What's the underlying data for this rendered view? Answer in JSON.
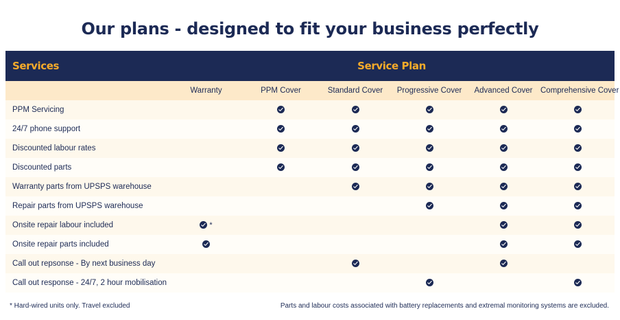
{
  "title": "Our plans - designed to fit your business perfectly",
  "header": {
    "services_label": "Services",
    "plan_label": "Service Plan"
  },
  "columns": [
    "Warranty",
    "PPM Cover",
    "Standard Cover",
    "Progressive Cover",
    "Advanced Cover",
    "Comprehensive Cover"
  ],
  "rows": [
    {
      "service": "PPM Servicing",
      "cells": [
        "",
        "check",
        "check",
        "check",
        "check",
        "check"
      ]
    },
    {
      "service": "24/7 phone support",
      "cells": [
        "",
        "check",
        "check",
        "check",
        "check",
        "check"
      ]
    },
    {
      "service": "Discounted labour rates",
      "cells": [
        "",
        "check",
        "check",
        "check",
        "check",
        "check"
      ]
    },
    {
      "service": "Discounted parts",
      "cells": [
        "",
        "check",
        "check",
        "check",
        "check",
        "check"
      ]
    },
    {
      "service": "Warranty parts from UPSPS warehouse",
      "cells": [
        "",
        "",
        "check",
        "check",
        "check",
        "check"
      ]
    },
    {
      "service": "Repair parts from UPSPS warehouse",
      "cells": [
        "",
        "",
        "",
        "check",
        "check",
        "check"
      ]
    },
    {
      "service": "Onsite repair labour included",
      "cells": [
        "check*",
        "",
        "",
        "",
        "check",
        "check"
      ]
    },
    {
      "service": "Onsite repair parts included",
      "cells": [
        "check",
        "",
        "",
        "",
        "check",
        "check"
      ]
    },
    {
      "service": "Call out repsonse - By next business day",
      "cells": [
        "",
        "",
        "check",
        "",
        "check",
        ""
      ]
    },
    {
      "service": "Call out response - 24/7, 2 hour mobilisation",
      "cells": [
        "",
        "",
        "",
        "check",
        "",
        "check"
      ]
    }
  ],
  "icons": {
    "check": "check-circle-icon"
  },
  "colors": {
    "navy": "#1c2a55",
    "orange": "#f6ab2a",
    "cream": "#fde9c9"
  },
  "footnotes": {
    "left": "* Hard-wired units only. Travel excluded",
    "right": "Parts and labour costs associated with battery replacements and extremal monitoring systems are excluded."
  }
}
